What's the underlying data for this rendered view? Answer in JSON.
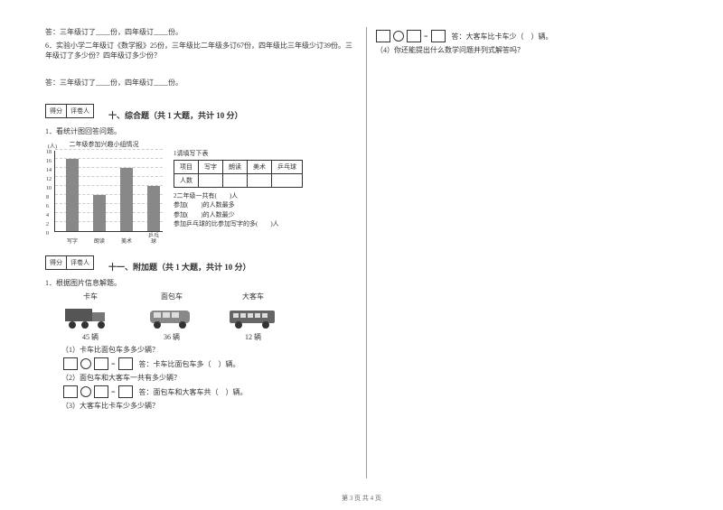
{
  "leftTop": {
    "ans5": "答：三年级订了____份，四年级订____份。",
    "q6": "6．实验小学二年级订《数学报》25份，三年级比二年级多订67份，四年级比三年级少订39份。三年级订了多少份？四年级订多少份？",
    "ans6": "答：三年级订了____份，四年级订____份。"
  },
  "scoreLabels": {
    "score": "得分",
    "grader": "评卷人"
  },
  "section10": {
    "title": "十、综合题（共 1 大题，共计 10 分）",
    "q1": "1．看统计图回答问题。",
    "chart": {
      "title": "二年级参加兴趣小组情况",
      "unit": "(人)",
      "ytick_step": 2,
      "ymax": 18,
      "categories": [
        "写字",
        "朗读",
        "美术",
        "乒乓球"
      ],
      "values": [
        16,
        8,
        14,
        10
      ],
      "bar_color": "#888888",
      "grid_color": "#cccccc"
    },
    "table": {
      "caption": "1请填写下表",
      "header": [
        "项目",
        "写字",
        "朗读",
        "美术",
        "乒乓球"
      ],
      "row_label": "人数"
    },
    "fills": {
      "a": "2二年级一共有(　　)人",
      "b": "参加(　　)的人数最多",
      "c": "参加(　　)的人数最少",
      "d": "参加乒乓球的比参加写字的多(　　)人"
    }
  },
  "section11": {
    "title": "十一、附加题（共 1 大题，共计 10 分）",
    "q1": "1．根据图片信息解题。",
    "vehicles": {
      "truck": {
        "label": "卡车",
        "count": "45 辆"
      },
      "van": {
        "label": "面包车",
        "count": "36 辆"
      },
      "bus": {
        "label": "大客车",
        "count": "12 辆"
      }
    },
    "sub1": "（1）卡车比面包车多多少辆？",
    "ans1_tail": "答：卡车比面包车多（　）辆。",
    "sub2": "（2）面包车和大客车一共有多少辆？",
    "ans2_tail": "答：面包车和大客车共（　）辆。",
    "sub3": "（3）大客车比卡车少多少辆？"
  },
  "right": {
    "ans3_tail": "答：大客车比卡车少（　）辆。",
    "sub4": "（4）你还能提出什么数学问题并列式解答吗？"
  },
  "footer": "第 3 页 共 4 页"
}
